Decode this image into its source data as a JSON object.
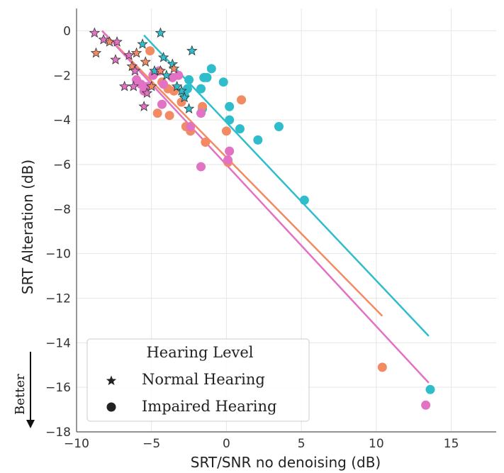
{
  "chart_data": {
    "type": "scatter",
    "title": "",
    "xlabel": "SRT/SNR no denoising (dB)",
    "ylabel": "SRT Alteration (dB)",
    "xlim": [
      -10,
      18
    ],
    "ylim": [
      -18,
      1
    ],
    "x_ticks": [
      -10,
      -5,
      0,
      5,
      10,
      15
    ],
    "y_ticks": [
      0,
      -2,
      -4,
      -6,
      -8,
      -10,
      -12,
      -14,
      -16,
      -18
    ],
    "x_tick_labels": [
      "−10",
      "−5",
      "0",
      "5",
      "10",
      "15"
    ],
    "y_tick_labels": [
      "0",
      "−2",
      "−4",
      "−6",
      "−8",
      "−10",
      "−12",
      "−14",
      "−16",
      "−18"
    ],
    "grid": true,
    "legend": {
      "position": "bottom-left",
      "title": "Hearing Level",
      "entries": [
        {
          "label": "Normal Hearing",
          "marker": "star"
        },
        {
          "label": "Impaired Hearing",
          "marker": "circle"
        }
      ]
    },
    "annotation": {
      "text": "Better",
      "direction": "down"
    },
    "series": [
      {
        "color": "#2fbdcc",
        "line": {
          "x": [
            -5.5,
            13.5
          ],
          "y": [
            -0.2,
            -13.7
          ]
        },
        "normal": [
          [
            -4.4,
            -0.1
          ],
          [
            -2.3,
            -0.9
          ],
          [
            -5.6,
            -0.6
          ],
          [
            -4.2,
            -1.2
          ],
          [
            -3.6,
            -1.5
          ],
          [
            -4.0,
            -2.0
          ],
          [
            -3.0,
            -2.7
          ],
          [
            -2.8,
            -3.0
          ],
          [
            -2.5,
            -3.5
          ],
          [
            -3.3,
            -2.5
          ],
          [
            -4.8,
            -1.8
          ]
        ],
        "impaired": [
          [
            -1.0,
            -1.7
          ],
          [
            -1.5,
            -2.1
          ],
          [
            -1.3,
            -2.1
          ],
          [
            -2.5,
            -2.2
          ],
          [
            -0.2,
            -2.3
          ],
          [
            -2.6,
            -2.6
          ],
          [
            -2.8,
            -2.9
          ],
          [
            -1.7,
            -2.6
          ],
          [
            0.2,
            -3.4
          ],
          [
            -1.6,
            -3.5
          ],
          [
            0.2,
            -4.0
          ],
          [
            0.9,
            -4.4
          ],
          [
            2.1,
            -4.9
          ],
          [
            3.5,
            -4.3
          ],
          [
            5.2,
            -7.6
          ],
          [
            13.6,
            -16.1
          ]
        ]
      },
      {
        "color": "#f28b63",
        "line": {
          "x": [
            -8.3,
            10.4
          ],
          "y": [
            0.0,
            -12.8
          ]
        },
        "normal": [
          [
            -8.7,
            -1.0
          ],
          [
            -7.8,
            -0.5
          ],
          [
            -6.0,
            -1.0
          ],
          [
            -5.4,
            -1.4
          ],
          [
            -4.4,
            -1.8
          ],
          [
            -5.0,
            -2.5
          ],
          [
            -3.5,
            -1.7
          ],
          [
            -6.3,
            -1.6
          ]
        ],
        "impaired": [
          [
            -5.1,
            -0.9
          ],
          [
            -4.8,
            -1.9
          ],
          [
            -4.3,
            -2.3
          ],
          [
            -3.9,
            -2.6
          ],
          [
            -3.5,
            -2.7
          ],
          [
            -3.0,
            -3.2
          ],
          [
            -4.6,
            -3.7
          ],
          [
            -3.8,
            -3.8
          ],
          [
            -2.7,
            -4.3
          ],
          [
            -2.4,
            -4.5
          ],
          [
            -1.6,
            -3.4
          ],
          [
            -1.4,
            -5.0
          ],
          [
            0.0,
            -4.5
          ],
          [
            1.0,
            -3.1
          ],
          [
            0.1,
            -5.9
          ],
          [
            10.4,
            -15.1
          ]
        ]
      },
      {
        "color": "#e272c3",
        "line": {
          "x": [
            -8.3,
            13.5
          ],
          "y": [
            0.0,
            -15.8
          ]
        },
        "normal": [
          [
            -8.8,
            -0.1
          ],
          [
            -8.2,
            -0.4
          ],
          [
            -7.3,
            -0.5
          ],
          [
            -6.5,
            -1.1
          ],
          [
            -6.1,
            -1.8
          ],
          [
            -6.8,
            -2.5
          ],
          [
            -6.2,
            -2.5
          ],
          [
            -5.5,
            -3.4
          ],
          [
            -7.4,
            -1.3
          ],
          [
            -5.3,
            -2.8
          ]
        ],
        "impaired": [
          [
            -6.0,
            -2.2
          ],
          [
            -5.7,
            -2.4
          ],
          [
            -5.3,
            -2.5
          ],
          [
            -4.9,
            -2.0
          ],
          [
            -5.5,
            -2.7
          ],
          [
            -4.5,
            -1.8
          ],
          [
            -4.2,
            -2.4
          ],
          [
            -4.3,
            -3.3
          ],
          [
            -3.6,
            -2.1
          ],
          [
            -3.2,
            -2.0
          ],
          [
            -2.4,
            -4.3
          ],
          [
            -1.7,
            -3.7
          ],
          [
            -1.7,
            -6.1
          ],
          [
            0.2,
            -5.4
          ],
          [
            0.1,
            -5.8
          ],
          [
            13.3,
            -16.8
          ]
        ]
      }
    ]
  }
}
